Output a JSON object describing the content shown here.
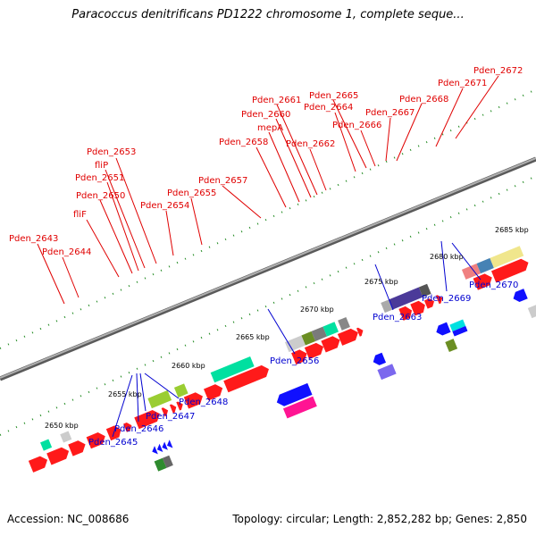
{
  "title": "Paracoccus denitrificans PD1222 chromosome 1, complete seque...",
  "footer": {
    "accession": "Accession: NC_008686",
    "topology": "Topology: circular; Length: 2,852,282 bp; Genes: 2,850"
  },
  "kbp_ticks": [
    "2650 kbp",
    "2655 kbp",
    "2660 kbp",
    "2665 kbp",
    "2670 kbp",
    "2675 kbp",
    "2680 kbp",
    "2685 kbp"
  ],
  "forward_genes": [
    "Pden_2643",
    "Pden_2644",
    "fliF",
    "Pden_2650",
    "Pden_2651",
    "fliP",
    "Pden_2653",
    "Pden_2654",
    "Pden_2655",
    "Pden_2657",
    "Pden_2658",
    "mepA",
    "Pden_2660",
    "Pden_2661",
    "Pden_2662",
    "Pden_2664",
    "Pden_2665",
    "Pden_2666",
    "Pden_2667",
    "Pden_2668",
    "Pden_2671",
    "Pden_2672"
  ],
  "reverse_genes": [
    "Pden_2645",
    "Pden_2646",
    "Pden_2647",
    "Pden_2648",
    "Pden_2656",
    "Pden_2663",
    "Pden_2669",
    "Pden_2670"
  ],
  "colors": {
    "forward": "#ff0000",
    "reverse": "#0000ff",
    "tick": "#228b22",
    "backbone": "#888888"
  }
}
